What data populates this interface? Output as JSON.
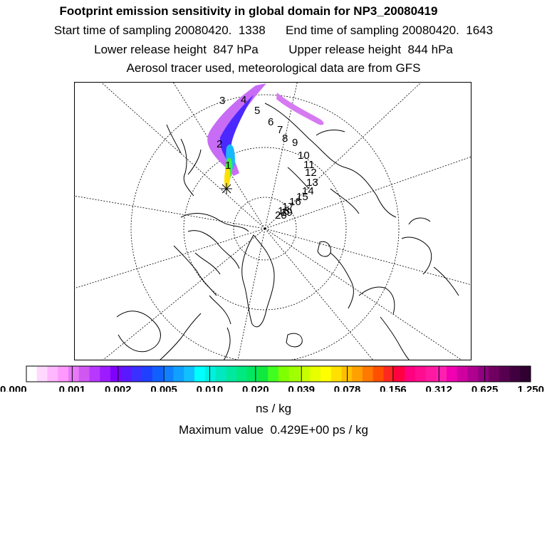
{
  "header": {
    "title": "Footprint emission sensitivity in global domain for NP3_20080419",
    "line2": "Start time of sampling 20080420.  1338      End time of sampling 20080420.  1643",
    "line3": "Lower release height  847 hPa         Upper release height  844 hPa",
    "line4": "Aerosol tracer used, meteorological data are from GFS"
  },
  "map": {
    "projection": "north polar stereographic",
    "trajectory_labels": [
      "1",
      "2",
      "3",
      "4",
      "5",
      "6",
      "7",
      "8",
      "9",
      "10",
      "11",
      "12",
      "13",
      "14",
      "15",
      "16",
      "17",
      "18",
      "19",
      "20"
    ],
    "colors": {
      "coast": "#000000",
      "grid": "#000000",
      "background": "#ffffff"
    }
  },
  "colorbar": {
    "tick_labels": [
      "0.000",
      "0.001",
      "0.002",
      "0.005",
      "0.010",
      "0.020",
      "0.039",
      "0.078",
      "0.156",
      "0.312",
      "0.625",
      "1.250"
    ],
    "colors": [
      "#ffffff",
      "#ffd8ff",
      "#ffb8ff",
      "#ff98ff",
      "#e878f8",
      "#d058f0",
      "#b838ff",
      "#9c1cff",
      "#7f00ff",
      "#5a18ff",
      "#3a30ff",
      "#2040ff",
      "#1060ff",
      "#1080ff",
      "#10a0ff",
      "#10c0ff",
      "#00ffff",
      "#00f0e0",
      "#00e8c0",
      "#00e8a0",
      "#00e880",
      "#00e860",
      "#10e840",
      "#40ff20",
      "#80ff00",
      "#a0ff00",
      "#c8ff00",
      "#e8ff00",
      "#ffff00",
      "#ffe000",
      "#ffc000",
      "#ffa000",
      "#ff7800",
      "#ff5000",
      "#ff2820",
      "#ff0040",
      "#ff0080",
      "#ff0c90",
      "#ff18a0",
      "#ff20b0",
      "#f000b0",
      "#d000a0",
      "#b00090",
      "#900080",
      "#700060",
      "#580050",
      "#400040",
      "#300030"
    ],
    "unit": "ns / kg",
    "max_value_text": "Maximum value  0.429E+00 ps / kg"
  }
}
